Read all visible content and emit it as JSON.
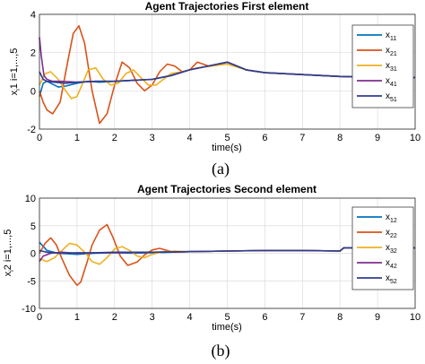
{
  "chart_data": [
    {
      "type": "line",
      "title": "Agent Trajectories First element",
      "xlabel": "time(s)",
      "ylabel": "x_i1 i=1,...,5",
      "xlim": [
        0,
        10
      ],
      "ylim": [
        -2,
        4
      ],
      "xticks": [
        0,
        1,
        2,
        3,
        4,
        5,
        6,
        7,
        8,
        9,
        10
      ],
      "yticks": [
        -2,
        0,
        2,
        4
      ],
      "grid": true,
      "legend_position": "top-right",
      "caption": "(a)",
      "series": [
        {
          "name": "x11",
          "label_main": "x",
          "label_sub": "11",
          "color": "#0072BD",
          "x": [
            0,
            0.1,
            0.2,
            0.3,
            0.5,
            0.7,
            1,
            1.3,
            1.6,
            2,
            2.5,
            3,
            3.5,
            4,
            4.5,
            5,
            5.5,
            6,
            7,
            8,
            9,
            10
          ],
          "y": [
            -0.3,
            0.4,
            0.5,
            0.4,
            0.2,
            0.25,
            0.4,
            0.5,
            0.45,
            0.5,
            0.55,
            0.6,
            0.8,
            1.1,
            1.3,
            1.5,
            1.1,
            0.95,
            0.85,
            0.75,
            0.7,
            0.7
          ]
        },
        {
          "name": "x21",
          "label_main": "x",
          "label_sub": "21",
          "color": "#D95319",
          "x": [
            0,
            0.1,
            0.2,
            0.35,
            0.55,
            0.75,
            0.9,
            1.05,
            1.2,
            1.4,
            1.6,
            1.8,
            2,
            2.2,
            2.4,
            2.6,
            2.8,
            3.0,
            3.2,
            3.4,
            3.6,
            3.8,
            4.0,
            4.2,
            4.5,
            4.8,
            5.0,
            5.5,
            6,
            7,
            8,
            9,
            10
          ],
          "y": [
            0,
            -0.6,
            -1.0,
            -1.2,
            -0.6,
            1.5,
            3.0,
            3.4,
            2.5,
            0.0,
            -1.7,
            -1.2,
            0.3,
            1.5,
            1.2,
            0.4,
            0.0,
            0.3,
            1.0,
            1.4,
            1.3,
            1.0,
            1.1,
            1.5,
            1.3,
            1.4,
            1.5,
            1.1,
            0.95,
            0.85,
            0.75,
            0.7,
            0.7
          ]
        },
        {
          "name": "x31",
          "label_main": "x",
          "label_sub": "31",
          "color": "#EDB120",
          "x": [
            0,
            0.15,
            0.3,
            0.5,
            0.7,
            0.85,
            1.0,
            1.15,
            1.3,
            1.5,
            1.7,
            1.9,
            2.1,
            2.3,
            2.5,
            2.7,
            2.9,
            3.1,
            3.3,
            3.5,
            3.8,
            4.2,
            4.6,
            5.0,
            5.5,
            6,
            7,
            8,
            9,
            10
          ],
          "y": [
            0.3,
            0.9,
            1.0,
            0.6,
            0.0,
            -0.4,
            -0.3,
            0.4,
            1.1,
            1.2,
            0.6,
            0.3,
            0.4,
            0.9,
            1.1,
            0.7,
            0.3,
            0.3,
            0.6,
            0.9,
            1.0,
            1.2,
            1.3,
            1.4,
            1.1,
            0.95,
            0.85,
            0.75,
            0.7,
            0.7
          ]
        },
        {
          "name": "x41",
          "label_main": "x",
          "label_sub": "41",
          "color": "#7E2F8E",
          "x": [
            0,
            0.05,
            0.12,
            0.2,
            0.35,
            0.6,
            1,
            1.5,
            2,
            2.5,
            3,
            3.5,
            4,
            4.5,
            5,
            5.5,
            6,
            7,
            8,
            9,
            10
          ],
          "y": [
            2.8,
            1.8,
            0.8,
            0.6,
            0.5,
            0.5,
            0.45,
            0.5,
            0.5,
            0.55,
            0.6,
            0.8,
            1.1,
            1.3,
            1.5,
            1.1,
            0.95,
            0.85,
            0.75,
            0.7,
            0.7
          ]
        },
        {
          "name": "x51",
          "label_main": "x",
          "label_sub": "51",
          "color": "#2E3E8E",
          "x": [
            0,
            0.1,
            0.2,
            0.4,
            0.7,
            1,
            1.5,
            2,
            2.5,
            3,
            3.5,
            4,
            4.5,
            5,
            5.5,
            6,
            7,
            8,
            9,
            10
          ],
          "y": [
            1.0,
            0.6,
            0.5,
            0.45,
            0.4,
            0.45,
            0.5,
            0.5,
            0.55,
            0.6,
            0.8,
            1.1,
            1.3,
            1.5,
            1.1,
            0.95,
            0.85,
            0.75,
            0.7,
            0.7
          ]
        }
      ]
    },
    {
      "type": "line",
      "title": "Agent Trajectories Second element",
      "xlabel": "time(s)",
      "ylabel": "x_i2 i=1,...,5",
      "xlim": [
        0,
        10
      ],
      "ylim": [
        -10,
        10
      ],
      "xticks": [
        0,
        1,
        2,
        3,
        4,
        5,
        6,
        7,
        8,
        9,
        10
      ],
      "yticks": [
        -10,
        -5,
        0,
        5,
        10
      ],
      "grid": true,
      "legend_position": "top-right",
      "caption": "(b)",
      "series": [
        {
          "name": "x12",
          "label_main": "x",
          "label_sub": "12",
          "color": "#0072BD",
          "x": [
            0,
            0.2,
            0.5,
            1,
            1.5,
            2,
            2.5,
            3,
            3.5,
            4,
            5,
            6,
            7,
            8,
            8.1,
            9,
            10
          ],
          "y": [
            2.0,
            0.5,
            0.0,
            -0.2,
            0.0,
            0.1,
            0.0,
            0.1,
            0.2,
            0.3,
            0.4,
            0.5,
            0.5,
            0.4,
            1.0,
            1.0,
            1.0
          ]
        },
        {
          "name": "x22",
          "label_main": "x",
          "label_sub": "22",
          "color": "#D95319",
          "x": [
            0,
            0.15,
            0.3,
            0.45,
            0.6,
            0.8,
            1.0,
            1.1,
            1.25,
            1.4,
            1.6,
            1.8,
            1.95,
            2.15,
            2.35,
            2.6,
            2.8,
            3.0,
            3.2,
            3.4,
            3.6,
            4,
            5,
            6,
            7,
            8,
            8.1,
            9,
            10
          ],
          "y": [
            0,
            1.8,
            2.8,
            1.5,
            -1.0,
            -4.0,
            -5.8,
            -5.2,
            -2.0,
            1.5,
            4.2,
            5.2,
            3.0,
            -0.5,
            -2.2,
            -1.6,
            -0.3,
            0.6,
            0.9,
            0.5,
            0.2,
            0.3,
            0.4,
            0.5,
            0.5,
            0.4,
            1.0,
            1.0,
            1.0
          ]
        },
        {
          "name": "x32",
          "label_main": "x",
          "label_sub": "32",
          "color": "#EDB120",
          "x": [
            0,
            0.2,
            0.4,
            0.6,
            0.8,
            1.0,
            1.2,
            1.4,
            1.6,
            1.8,
            2.0,
            2.2,
            2.4,
            2.6,
            2.8,
            3.0,
            3.3,
            3.6,
            4,
            5,
            6,
            7,
            8,
            8.1,
            9,
            10
          ],
          "y": [
            -1.0,
            -1.5,
            -0.8,
            0.5,
            1.8,
            1.5,
            0.2,
            -1.5,
            -2.0,
            -0.8,
            0.8,
            1.2,
            0.5,
            -0.5,
            -0.8,
            -0.2,
            0.3,
            0.4,
            0.3,
            0.4,
            0.5,
            0.5,
            0.4,
            1.0,
            1.0,
            1.0
          ]
        },
        {
          "name": "x42",
          "label_main": "x",
          "label_sub": "42",
          "color": "#7E2F8E",
          "x": [
            0,
            0.1,
            0.3,
            0.6,
            1,
            1.5,
            2,
            3,
            4,
            5,
            6,
            7,
            8,
            8.1,
            9,
            10
          ],
          "y": [
            -1.5,
            -0.5,
            0.0,
            0.2,
            0.0,
            0.1,
            0.1,
            0.2,
            0.3,
            0.4,
            0.5,
            0.5,
            0.4,
            1.0,
            1.0,
            1.0
          ]
        },
        {
          "name": "x52",
          "label_main": "x",
          "label_sub": "52",
          "color": "#2E3E8E",
          "x": [
            0,
            0.2,
            0.5,
            1,
            1.5,
            2,
            3,
            4,
            5,
            6,
            7,
            8,
            8.1,
            9,
            10
          ],
          "y": [
            0.5,
            0.2,
            0.0,
            0.1,
            0.1,
            0.2,
            0.2,
            0.3,
            0.4,
            0.5,
            0.5,
            0.4,
            1.0,
            1.0,
            1.0
          ]
        }
      ]
    }
  ]
}
